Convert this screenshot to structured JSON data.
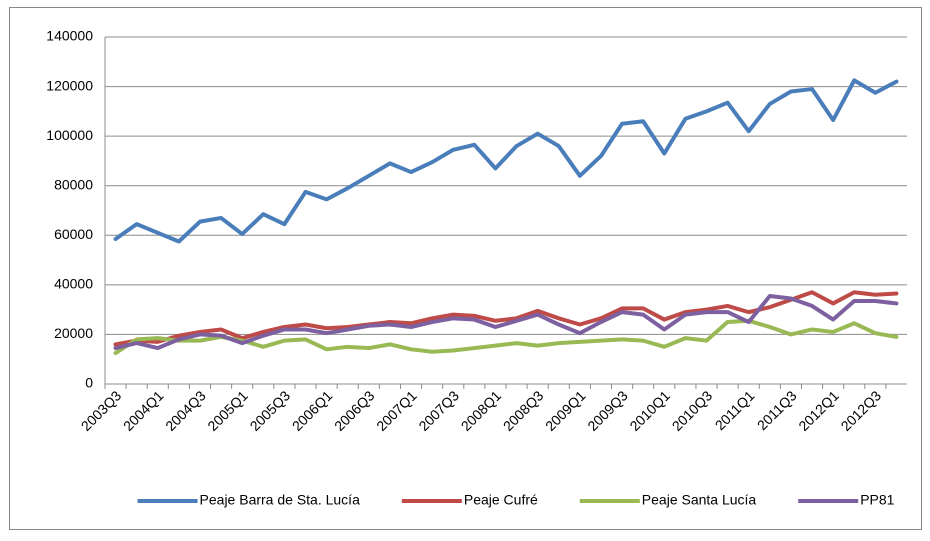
{
  "chart_data": {
    "type": "line",
    "categories": [
      "2003Q3",
      null,
      "2004Q1",
      null,
      "2004Q3",
      null,
      "2005Q1",
      null,
      "2005Q3",
      null,
      "2006Q1",
      null,
      "2006Q3",
      null,
      "2007Q1",
      null,
      "2007Q3",
      null,
      "2008Q1",
      null,
      "2008Q3",
      null,
      "2009Q1",
      null,
      "2009Q3",
      null,
      "2010Q1",
      null,
      "2010Q3",
      null,
      "2011Q1",
      null,
      "2011Q3",
      null,
      "2012Q1",
      null,
      "2012Q3",
      null
    ],
    "series": [
      {
        "name": "Peaje Barra de Sta. Lucía",
        "color": "#4a7ebb",
        "values": [
          58500,
          64500,
          61000,
          57500,
          65500,
          67000,
          60500,
          68500,
          64500,
          77500,
          74500,
          79000,
          84000,
          89000,
          85500,
          89500,
          94500,
          96500,
          87000,
          96000,
          101000,
          96000,
          84000,
          92000,
          105000,
          106000,
          93000,
          107000,
          110000,
          113500,
          102000,
          113000,
          118000,
          119000,
          106500,
          122500,
          117500,
          122000
        ]
      },
      {
        "name": "Peaje Cufré",
        "color": "#be4b48",
        "values": [
          16000,
          17500,
          17000,
          19500,
          21000,
          22000,
          18500,
          21000,
          23000,
          24000,
          22500,
          23000,
          24000,
          25000,
          24500,
          26500,
          28000,
          27500,
          25500,
          26500,
          29500,
          26500,
          24000,
          26500,
          30500,
          30500,
          26000,
          29000,
          30000,
          31500,
          29000,
          31000,
          34000,
          37000,
          32500,
          37000,
          36000,
          36500
        ]
      },
      {
        "name": "Peaje Santa Lucía",
        "color": "#98b954",
        "values": [
          12500,
          18000,
          18500,
          17500,
          17500,
          19000,
          17500,
          15000,
          17500,
          18000,
          14000,
          15000,
          14500,
          16000,
          14000,
          13000,
          13500,
          14500,
          15500,
          16500,
          15500,
          16500,
          17000,
          17500,
          18000,
          17500,
          15000,
          18500,
          17500,
          25000,
          25500,
          23000,
          20000,
          22000,
          21000,
          24500,
          20500,
          19000
        ]
      },
      {
        "name": "PP81",
        "color": "#7d60a0",
        "values": [
          14500,
          16500,
          14500,
          18000,
          20000,
          19500,
          16500,
          19500,
          22000,
          22000,
          20500,
          22000,
          23500,
          24000,
          23000,
          25000,
          26500,
          26000,
          23000,
          25500,
          28000,
          24000,
          20500,
          25000,
          29000,
          28000,
          22000,
          28000,
          29000,
          29000,
          25000,
          35500,
          34500,
          31500,
          26000,
          33500,
          33500,
          32500
        ]
      }
    ],
    "ylim": [
      0,
      140000
    ],
    "yticks": [
      0,
      20000,
      40000,
      60000,
      80000,
      100000,
      120000,
      140000
    ],
    "grid": true,
    "legend": "bottom"
  }
}
